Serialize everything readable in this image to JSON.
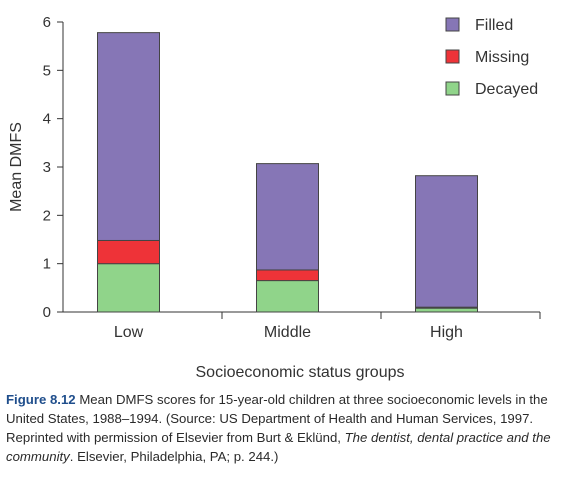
{
  "chart_data": {
    "type": "bar",
    "stacked": true,
    "categories": [
      "Low",
      "Middle",
      "High"
    ],
    "series": [
      {
        "name": "Decayed",
        "values": [
          1.0,
          0.65,
          0.08
        ],
        "color": "#90d48a"
      },
      {
        "name": "Missing",
        "values": [
          0.48,
          0.22,
          0.02
        ],
        "color": "#ee3338"
      },
      {
        "name": "Filled",
        "values": [
          4.3,
          2.2,
          2.72
        ],
        "color": "#8676b6"
      }
    ],
    "legend_order": [
      "Filled",
      "Missing",
      "Decayed"
    ],
    "legend_position": "top-right",
    "xlabel": "Socioeconomic status groups",
    "ylabel": "Mean DMFS",
    "ylim": [
      0,
      6
    ],
    "yticks": [
      "0",
      "1",
      "2",
      "3",
      "4",
      "5",
      "6"
    ],
    "grid": false
  },
  "caption": {
    "label": "Figure 8.12",
    "text": "Mean DMFS scores for 15-year-old children at three socioeconomic levels in the United States, 1988–1994. (Source: US Department of Health and Human Services, 1997. Reprinted with permission of Elsevier from Burt & Eklünd,",
    "italic": "The dentist, dental practice and the community",
    "tail": ". Elsevier, Philadelphia, PA; p. 244.)"
  }
}
